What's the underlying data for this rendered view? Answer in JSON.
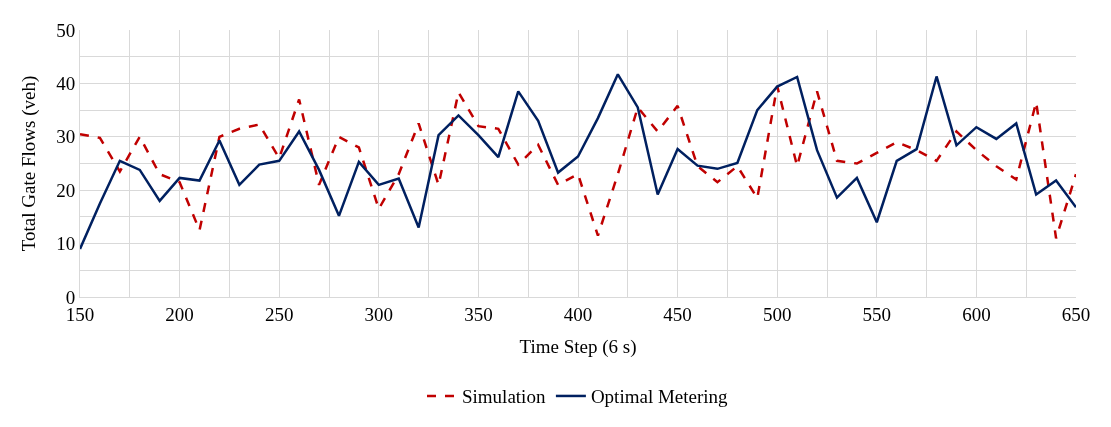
{
  "chart_data": {
    "type": "line",
    "xlabel": "Time Step (6 s)",
    "ylabel": "Total Gate Flows (veh)",
    "x": [
      150,
      160,
      170,
      180,
      190,
      200,
      210,
      220,
      230,
      240,
      250,
      260,
      270,
      280,
      290,
      300,
      310,
      320,
      330,
      340,
      350,
      360,
      370,
      380,
      390,
      400,
      410,
      420,
      430,
      440,
      450,
      460,
      470,
      480,
      490,
      500,
      510,
      520,
      530,
      540,
      550,
      560,
      570,
      580,
      590,
      600,
      610,
      620,
      630,
      640,
      650
    ],
    "series": [
      {
        "name": "Simulation",
        "color": "#c00000",
        "line_style": "dashed",
        "values": [
          30.5,
          29.8,
          23.5,
          30,
          23,
          21.5,
          12.5,
          30,
          31.5,
          32.3,
          26,
          37,
          21,
          30,
          28,
          16.5,
          23,
          32.5,
          21,
          38.3,
          32,
          31.5,
          24.8,
          28.5,
          21,
          23,
          11.5,
          23,
          35.5,
          31,
          35.8,
          24.5,
          21.5,
          24.5,
          18.5,
          39.5,
          24.5,
          38.5,
          25.5,
          25,
          27,
          29,
          27.5,
          25.5,
          31,
          27.5,
          24.5,
          22,
          36.5,
          11,
          23
        ]
      },
      {
        "name": "Optimal Metering",
        "color": "#002060",
        "line_style": "solid",
        "values": [
          9,
          17.5,
          25.5,
          23.8,
          18,
          22.3,
          21.8,
          29.3,
          21,
          24.8,
          25.5,
          31,
          23.8,
          15.2,
          25.3,
          21,
          22.2,
          13,
          30.3,
          34,
          30.3,
          26.2,
          38.5,
          33,
          23.3,
          26.3,
          33.5,
          41.7,
          35.5,
          19.2,
          27.7,
          24.6,
          24,
          25.1,
          35,
          39.4,
          41.2,
          27.5,
          18.6,
          22.3,
          14,
          25.5,
          27.7,
          41.3,
          28.4,
          31.8,
          29.6,
          32.5,
          19.2,
          21.8,
          16.8
        ]
      }
    ],
    "xlim": [
      150,
      650
    ],
    "ylim": [
      0,
      50
    ],
    "xticks": [
      150,
      {
        "value": 175,
        "label": null
      },
      200,
      {
        "value": 225,
        "label": null
      },
      250,
      {
        "value": 275,
        "label": null
      },
      300,
      {
        "value": 325,
        "label": null
      },
      350,
      {
        "value": 375,
        "label": null
      },
      400,
      {
        "value": 425,
        "label": null
      },
      450,
      {
        "value": 475,
        "label": null
      },
      500,
      {
        "value": 525,
        "label": null
      },
      550,
      {
        "value": 575,
        "label": null
      },
      600,
      {
        "value": 625,
        "label": null
      },
      650
    ],
    "yticks": [
      0,
      {
        "value": 5,
        "label": null
      },
      10,
      {
        "value": 15,
        "label": null
      },
      20,
      {
        "value": 25,
        "label": null
      },
      30,
      {
        "value": 35,
        "label": null
      },
      40,
      {
        "value": 45,
        "label": null
      },
      50
    ],
    "grid": true,
    "legend": "bottom",
    "marker": "none"
  }
}
